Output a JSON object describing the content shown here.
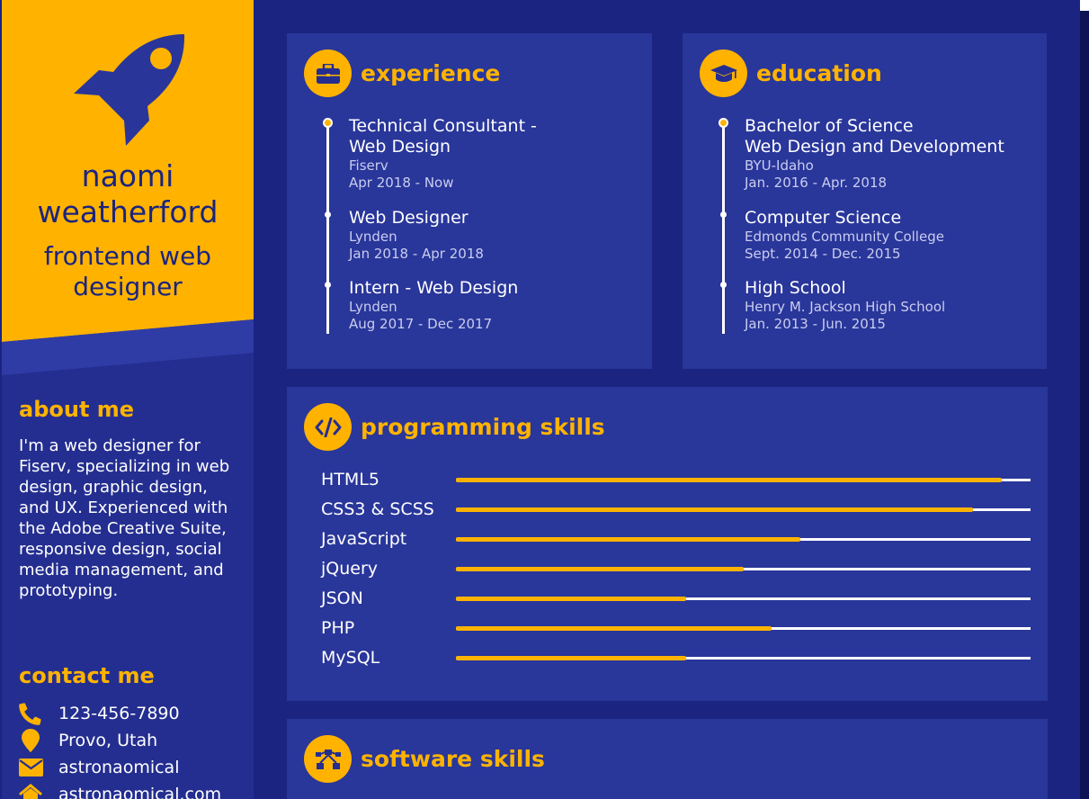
{
  "colors": {
    "navy": "#1b2480",
    "panel": "#29369a",
    "accent": "#ffb300",
    "text": "#ffffff"
  },
  "profile": {
    "name": "naomi weatherford",
    "role": "frontend web designer",
    "icon": "rocket-icon"
  },
  "about": {
    "heading": "about me",
    "text": "I'm a web designer for Fiserv, specializing in web design, graphic design, and UX. Experienced with the Adobe Creative Suite, responsive design, social media management, and prototyping."
  },
  "contact": {
    "heading": "contact me",
    "phone": "123-456-7890",
    "location": "Provo, Utah",
    "email": "astronaomical",
    "website": "astronaomical.com"
  },
  "experience": {
    "title": "experience",
    "icon": "briefcase-icon",
    "items": [
      {
        "title": "Technical Consultant - Web Design",
        "org": "Fiserv",
        "dates": "Apr 2018 - Now"
      },
      {
        "title": "Web Designer",
        "org": "Lynden",
        "dates": "Jan 2018 - Apr 2018"
      },
      {
        "title": "Intern - Web Design",
        "org": "Lynden",
        "dates": "Aug 2017 - Dec 2017"
      }
    ]
  },
  "education": {
    "title": "education",
    "icon": "graduation-cap-icon",
    "items": [
      {
        "title": "Bachelor of Science",
        "title2": "Web Design and Development",
        "org": "BYU-Idaho",
        "dates": "Jan. 2016 - Apr. 2018"
      },
      {
        "title": "Computer Science",
        "org": "Edmonds Community College",
        "dates": "Sept. 2014 - Dec. 2015"
      },
      {
        "title": "High School",
        "org": "Henry M. Jackson High School",
        "dates": "Jan. 2013 - Jun. 2015"
      }
    ]
  },
  "programming": {
    "title": "programming skills",
    "icon": "code-icon",
    "skills": [
      {
        "name": "HTML5",
        "level": 0.95
      },
      {
        "name": "CSS3 & SCSS",
        "level": 0.9
      },
      {
        "name": "JavaScript",
        "level": 0.6
      },
      {
        "name": "jQuery",
        "level": 0.5
      },
      {
        "name": "JSON",
        "level": 0.4
      },
      {
        "name": "PHP",
        "level": 0.55
      },
      {
        "name": "MySQL",
        "level": 0.4
      }
    ]
  },
  "software": {
    "title": "software skills",
    "icon": "vector-nodes-icon"
  }
}
